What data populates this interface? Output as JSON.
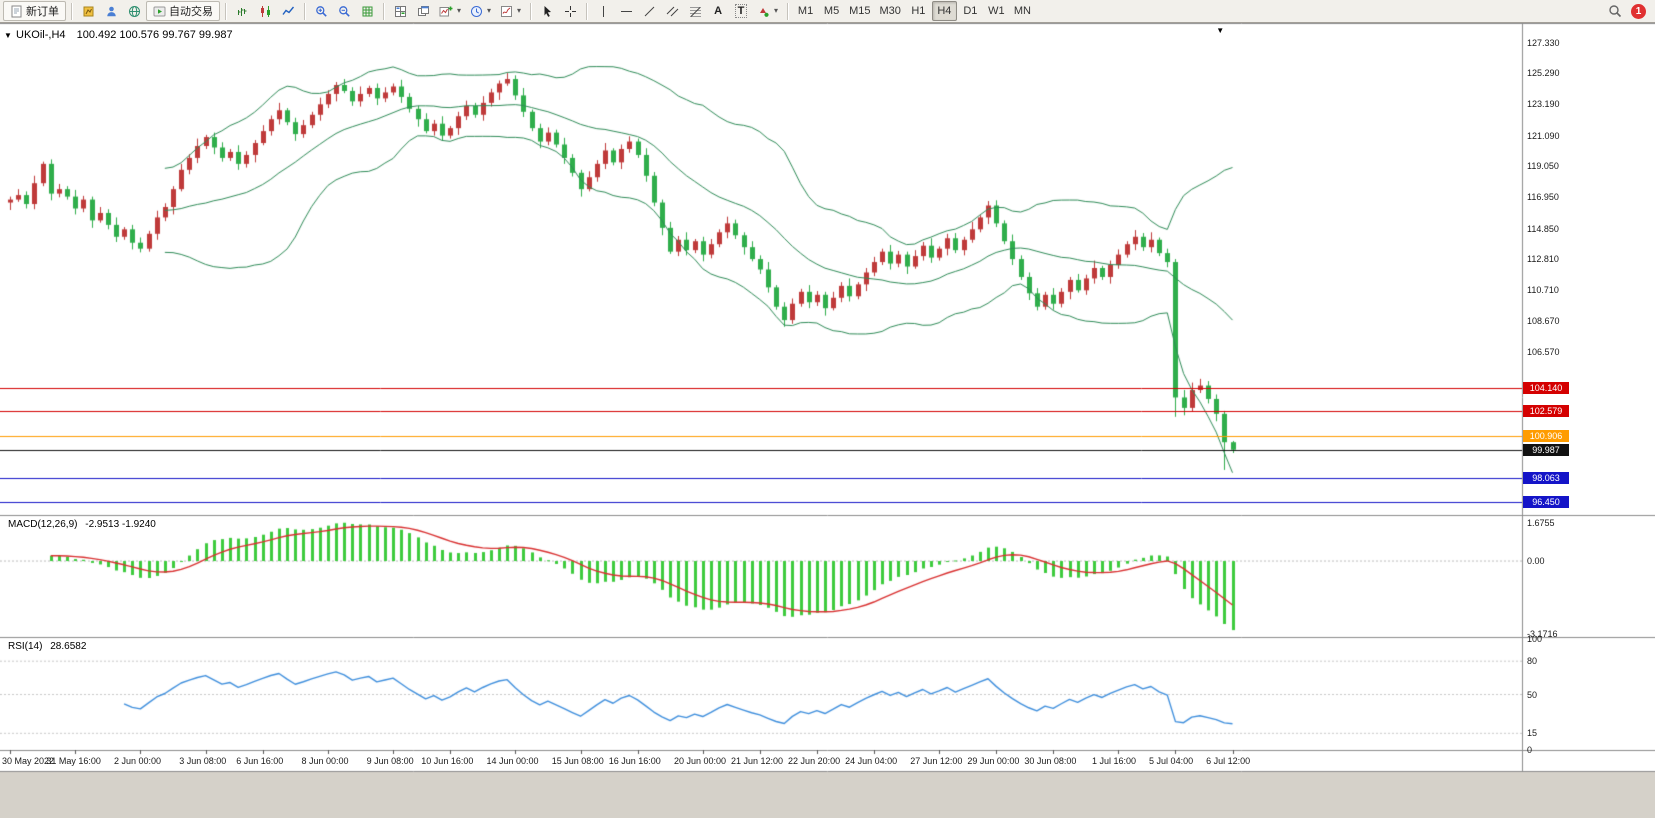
{
  "toolbar": {
    "new_order": "新订单",
    "auto_trading": "自动交易",
    "text_tool": "A",
    "label_tool": "T",
    "timeframes": [
      "M1",
      "M5",
      "M15",
      "M30",
      "H1",
      "H4",
      "D1",
      "W1",
      "MN"
    ],
    "active_timeframe": "H4",
    "notification_count": "1"
  },
  "icons": {
    "dropdown_arrow": "▾",
    "shift_marker": "▼",
    "collapse_arrow": "▼"
  },
  "chart": {
    "title": "UKOil-,H4",
    "ohlc": "100.492 100.576 99.767 99.987"
  },
  "macd": {
    "title": "MACD(12,26,9)",
    "values": "-2.9513 -1.9240",
    "ticks": [
      "1.6755",
      "0.00",
      "-3.1716"
    ]
  },
  "rsi": {
    "title": "RSI(14)",
    "value": "28.6582",
    "ticks": [
      "100",
      "80",
      "50",
      "15",
      "0"
    ],
    "levels": [
      80,
      50,
      15
    ],
    "period": 14
  },
  "price_axis": [
    "127.330",
    "125.290",
    "123.190",
    "121.090",
    "119.050",
    "116.950",
    "114.850",
    "112.810",
    "110.710",
    "108.670",
    "106.570"
  ],
  "price_lines": [
    {
      "label": "104.140",
      "value": 104.14,
      "color": "#d40000"
    },
    {
      "label": "102.579",
      "value": 102.579,
      "color": "#d40000"
    },
    {
      "label": "100.906",
      "value": 100.906,
      "color": "#ff9c00"
    },
    {
      "label": "99.987",
      "value": 99.987,
      "color": "#111111"
    },
    {
      "label": "98.063",
      "value": 98.063,
      "color": "#1414c8"
    },
    {
      "label": "96.450",
      "value": 96.45,
      "color": "#1414c8"
    }
  ],
  "time_axis": [
    {
      "label": "30 May 2022",
      "bar": 0
    },
    {
      "label": "31 May 16:00",
      "bar": 8
    },
    {
      "label": "2 Jun 00:00",
      "bar": 16
    },
    {
      "label": "3 Jun 08:00",
      "bar": 24
    },
    {
      "label": "6 Jun 16:00",
      "bar": 31
    },
    {
      "label": "8 Jun 00:00",
      "bar": 39
    },
    {
      "label": "9 Jun 08:00",
      "bar": 47
    },
    {
      "label": "10 Jun 16:00",
      "bar": 54
    },
    {
      "label": "14 Jun 00:00",
      "bar": 62
    },
    {
      "label": "15 Jun 08:00",
      "bar": 70
    },
    {
      "label": "16 Jun 16:00",
      "bar": 77
    },
    {
      "label": "20 Jun 00:00",
      "bar": 85
    },
    {
      "label": "21 Jun 12:00",
      "bar": 92
    },
    {
      "label": "22 Jun 20:00",
      "bar": 99
    },
    {
      "label": "24 Jun 04:00",
      "bar": 106
    },
    {
      "label": "27 Jun 12:00",
      "bar": 114
    },
    {
      "label": "29 Jun 00:00",
      "bar": 121
    },
    {
      "label": "30 Jun 08:00",
      "bar": 128
    },
    {
      "label": "1 Jul 16:00",
      "bar": 136
    },
    {
      "label": "5 Jul 04:00",
      "bar": 143
    },
    {
      "label": "6 Jul 12:00",
      "bar": 150
    }
  ],
  "chart_data": {
    "type": "candlestick",
    "symbol": "UKOil-",
    "timeframe": "H4",
    "indicators": [
      "Bollinger(20,2)",
      "MACD(12,26,9)",
      "RSI(14)"
    ],
    "price_range": [
      95.6,
      128.6
    ],
    "shift_marker_bar": 148.5,
    "colors": {
      "up": "#bf3a3a",
      "down": "#2fae4b",
      "bands": "#2e8b57",
      "macd": "#3ecb3e",
      "signal": "#d93030",
      "rsi": "#3f8fdd"
    },
    "candles": [
      [
        116.6,
        117.0,
        116.1,
        116.8
      ],
      [
        116.8,
        117.5,
        116.65,
        117.1
      ],
      [
        117.1,
        117.35,
        116.2,
        116.5
      ],
      [
        116.5,
        118.4,
        116.15,
        117.9
      ],
      [
        117.9,
        119.35,
        117.7,
        119.2
      ],
      [
        119.2,
        119.5,
        116.75,
        117.2
      ],
      [
        117.2,
        117.85,
        116.95,
        117.5
      ],
      [
        117.5,
        117.7,
        116.8,
        117.0
      ],
      [
        117.0,
        117.45,
        115.8,
        116.2
      ],
      [
        116.2,
        117.05,
        115.95,
        116.8
      ],
      [
        116.8,
        117.0,
        114.9,
        115.4
      ],
      [
        115.4,
        116.3,
        115.25,
        115.9
      ],
      [
        115.9,
        116.15,
        114.8,
        115.1
      ],
      [
        115.1,
        115.6,
        113.95,
        114.3
      ],
      [
        114.3,
        114.95,
        114.1,
        114.8
      ],
      [
        114.8,
        115.1,
        113.45,
        113.9
      ],
      [
        113.9,
        114.25,
        113.25,
        113.5
      ],
      [
        113.5,
        114.7,
        113.3,
        114.5
      ],
      [
        114.5,
        116.05,
        114.1,
        115.6
      ],
      [
        115.6,
        116.55,
        115.35,
        116.3
      ],
      [
        116.3,
        117.7,
        115.8,
        117.5
      ],
      [
        117.5,
        119.2,
        117.35,
        118.8
      ],
      [
        118.8,
        119.85,
        118.5,
        119.6
      ],
      [
        119.6,
        120.9,
        119.25,
        120.4
      ],
      [
        120.4,
        121.15,
        120.2,
        121.0
      ],
      [
        121.0,
        121.3,
        119.85,
        120.3
      ],
      [
        120.3,
        120.65,
        119.35,
        119.6
      ],
      [
        119.6,
        120.2,
        119.4,
        120.0
      ],
      [
        120.0,
        120.45,
        118.8,
        119.2
      ],
      [
        119.2,
        120.05,
        118.95,
        119.8
      ],
      [
        119.8,
        120.8,
        119.3,
        120.6
      ],
      [
        120.6,
        121.8,
        120.45,
        121.4
      ],
      [
        121.4,
        122.45,
        121.1,
        122.2
      ],
      [
        122.2,
        123.3,
        121.85,
        122.8
      ],
      [
        122.8,
        122.95,
        121.8,
        122.0
      ],
      [
        122.0,
        122.3,
        120.75,
        121.2
      ],
      [
        121.2,
        122.15,
        120.95,
        121.8
      ],
      [
        121.8,
        122.7,
        121.6,
        122.5
      ],
      [
        122.5,
        123.65,
        122.1,
        123.2
      ],
      [
        123.2,
        124.15,
        122.95,
        123.9
      ],
      [
        123.9,
        124.7,
        123.4,
        124.5
      ],
      [
        124.5,
        124.9,
        123.95,
        124.1
      ],
      [
        124.1,
        124.35,
        123.1,
        123.4
      ],
      [
        123.4,
        124.4,
        123.05,
        123.9
      ],
      [
        123.9,
        124.45,
        123.7,
        124.3
      ],
      [
        124.3,
        124.6,
        123.15,
        123.6
      ],
      [
        123.6,
        124.35,
        123.35,
        124.0
      ],
      [
        124.0,
        124.6,
        123.8,
        124.4
      ],
      [
        124.4,
        124.85,
        123.3,
        123.7
      ],
      [
        123.7,
        123.95,
        122.65,
        122.9
      ],
      [
        122.9,
        123.1,
        121.7,
        122.2
      ],
      [
        122.2,
        122.6,
        121.25,
        121.4
      ],
      [
        121.4,
        122.15,
        121.1,
        121.9
      ],
      [
        121.9,
        122.4,
        120.75,
        121.1
      ],
      [
        121.1,
        121.75,
        120.9,
        121.6
      ],
      [
        121.6,
        122.7,
        121.15,
        122.4
      ],
      [
        122.4,
        123.45,
        122.15,
        123.1
      ],
      [
        123.1,
        123.3,
        122.3,
        122.5
      ],
      [
        122.5,
        123.75,
        122.1,
        123.3
      ],
      [
        123.3,
        124.25,
        123.05,
        124.0
      ],
      [
        124.0,
        124.8,
        123.5,
        124.6
      ],
      [
        124.6,
        125.3,
        124.45,
        124.9
      ],
      [
        124.9,
        125.15,
        123.5,
        123.8
      ],
      [
        123.8,
        124.3,
        122.35,
        122.7
      ],
      [
        122.7,
        122.85,
        121.4,
        121.6
      ],
      [
        121.6,
        121.9,
        120.25,
        120.7
      ],
      [
        120.7,
        121.65,
        120.45,
        121.3
      ],
      [
        121.3,
        121.5,
        120.3,
        120.5
      ],
      [
        120.5,
        120.95,
        119.2,
        119.6
      ],
      [
        119.6,
        119.85,
        118.35,
        118.6
      ],
      [
        118.6,
        118.8,
        117.0,
        117.5
      ],
      [
        117.5,
        118.7,
        117.35,
        118.3
      ],
      [
        118.3,
        119.45,
        118.0,
        119.2
      ],
      [
        119.2,
        120.6,
        118.85,
        120.1
      ],
      [
        120.1,
        120.25,
        119.1,
        119.3
      ],
      [
        119.3,
        120.5,
        118.85,
        120.2
      ],
      [
        120.2,
        121.05,
        119.95,
        120.7
      ],
      [
        120.7,
        120.9,
        119.6,
        119.8
      ],
      [
        119.8,
        120.25,
        118.0,
        118.4
      ],
      [
        118.4,
        118.65,
        116.35,
        116.6
      ],
      [
        116.6,
        116.8,
        114.4,
        114.9
      ],
      [
        114.9,
        115.3,
        113.15,
        113.3
      ],
      [
        113.3,
        114.35,
        113.0,
        114.1
      ],
      [
        114.1,
        114.6,
        113.05,
        113.4
      ],
      [
        113.4,
        114.15,
        113.2,
        114.0
      ],
      [
        114.0,
        114.3,
        112.65,
        113.1
      ],
      [
        113.1,
        114.15,
        112.85,
        113.8
      ],
      [
        113.8,
        114.8,
        113.6,
        114.6
      ],
      [
        114.6,
        115.65,
        114.2,
        115.2
      ],
      [
        115.2,
        115.45,
        114.15,
        114.4
      ],
      [
        114.4,
        114.6,
        113.1,
        113.6
      ],
      [
        113.6,
        114.0,
        112.65,
        112.8
      ],
      [
        112.8,
        113.05,
        111.8,
        112.1
      ],
      [
        112.1,
        112.6,
        110.55,
        110.9
      ],
      [
        110.9,
        111.05,
        109.4,
        109.6
      ],
      [
        109.6,
        109.9,
        108.25,
        108.7
      ],
      [
        108.7,
        110.15,
        108.45,
        109.8
      ],
      [
        109.8,
        110.8,
        109.6,
        110.6
      ],
      [
        110.6,
        111.05,
        109.5,
        109.9
      ],
      [
        109.9,
        110.65,
        109.65,
        110.4
      ],
      [
        110.4,
        110.6,
        109.0,
        109.5
      ],
      [
        109.5,
        110.6,
        109.35,
        110.2
      ],
      [
        110.2,
        111.25,
        109.9,
        111.0
      ],
      [
        111.0,
        111.5,
        109.95,
        110.3
      ],
      [
        110.3,
        111.25,
        110.1,
        111.1
      ],
      [
        111.1,
        112.2,
        110.65,
        111.9
      ],
      [
        111.9,
        112.95,
        111.65,
        112.6
      ],
      [
        112.6,
        113.5,
        112.4,
        113.3
      ],
      [
        113.3,
        113.75,
        112.1,
        112.5
      ],
      [
        112.5,
        113.35,
        112.25,
        113.1
      ],
      [
        113.1,
        113.3,
        111.8,
        112.3
      ],
      [
        112.3,
        113.4,
        112.15,
        113.0
      ],
      [
        113.0,
        113.95,
        112.7,
        113.7
      ],
      [
        113.7,
        114.2,
        112.55,
        112.9
      ],
      [
        112.9,
        113.65,
        112.7,
        113.5
      ],
      [
        113.5,
        114.5,
        113.05,
        114.2
      ],
      [
        114.2,
        114.55,
        113.2,
        113.4
      ],
      [
        113.4,
        114.3,
        113.05,
        114.1
      ],
      [
        114.1,
        115.3,
        113.9,
        114.8
      ],
      [
        114.8,
        115.75,
        114.6,
        115.6
      ],
      [
        115.6,
        116.7,
        115.15,
        116.4
      ],
      [
        116.4,
        116.75,
        114.95,
        115.2
      ],
      [
        115.2,
        115.4,
        113.8,
        114.0
      ],
      [
        114.0,
        114.45,
        112.4,
        112.8
      ],
      [
        112.8,
        113.05,
        111.4,
        111.6
      ],
      [
        111.6,
        111.9,
        110.05,
        110.5
      ],
      [
        110.5,
        110.85,
        109.35,
        109.6
      ],
      [
        109.6,
        110.6,
        109.4,
        110.4
      ],
      [
        110.4,
        110.85,
        109.4,
        109.8
      ],
      [
        109.8,
        110.85,
        109.55,
        110.6
      ],
      [
        110.6,
        111.6,
        110.1,
        111.4
      ],
      [
        111.4,
        111.8,
        110.55,
        110.7
      ],
      [
        110.7,
        111.75,
        110.4,
        111.5
      ],
      [
        111.5,
        112.7,
        111.15,
        112.2
      ],
      [
        112.2,
        112.35,
        111.4,
        111.6
      ],
      [
        111.6,
        112.7,
        111.15,
        112.4
      ],
      [
        112.4,
        113.45,
        112.15,
        113.1
      ],
      [
        113.1,
        114.0,
        112.9,
        113.8
      ],
      [
        113.8,
        114.75,
        113.4,
        114.3
      ],
      [
        114.3,
        114.55,
        113.35,
        113.6
      ],
      [
        113.6,
        114.6,
        113.25,
        114.1
      ],
      [
        114.1,
        114.25,
        113.0,
        113.2
      ],
      [
        113.2,
        113.5,
        112.25,
        112.6
      ],
      [
        112.6,
        112.8,
        102.2,
        103.5
      ],
      [
        103.5,
        104.0,
        102.3,
        102.8
      ],
      [
        102.8,
        104.5,
        102.55,
        104.0
      ],
      [
        104.0,
        104.75,
        103.8,
        104.3
      ],
      [
        104.3,
        104.6,
        103.1,
        103.4
      ],
      [
        103.4,
        103.7,
        101.9,
        102.4
      ],
      [
        102.4,
        102.6,
        98.63,
        100.492
      ],
      [
        100.492,
        100.576,
        99.767,
        99.987
      ]
    ]
  }
}
